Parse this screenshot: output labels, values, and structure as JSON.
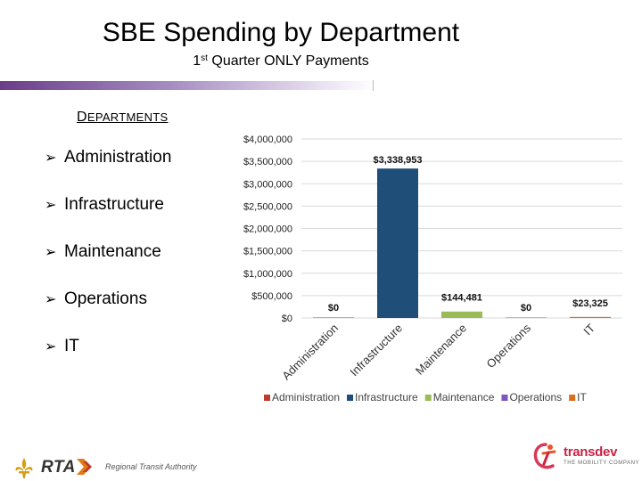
{
  "slide": {
    "title": "SBE Spending by Department",
    "subtitle_prefix": "1",
    "subtitle_sup": "st",
    "subtitle_rest": " Quarter ONLY Payments",
    "departments_heading_first": "D",
    "departments_heading_rest": "EPARTMENTS",
    "departments": [
      "Administration",
      "Infrastructure",
      "Maintenance",
      "Operations",
      "IT"
    ]
  },
  "footer": {
    "rta_name": "RTA",
    "rta_full": "Regional Transit Authority",
    "transdev_name": "transdev",
    "transdev_tagline": "THE MOBILITY COMPANY"
  },
  "colors": {
    "Administration": "#c0392b",
    "Infrastructure": "#1f4e79",
    "Maintenance": "#9bbb59",
    "Operations": "#7e57c2",
    "IT": "#d9701f"
  },
  "chart_data": {
    "type": "bar",
    "title": "",
    "xlabel": "",
    "ylabel": "",
    "categories": [
      "Administration",
      "Infrastructure",
      "Maintenance",
      "Operations",
      "IT"
    ],
    "values": [
      0,
      3338953,
      144481,
      0,
      23325
    ],
    "data_labels": [
      "$0",
      "$3,338,953",
      "$144,481",
      "$0",
      "$23,325"
    ],
    "ylim": [
      0,
      4000000
    ],
    "y_ticks": [
      0,
      500000,
      1000000,
      1500000,
      2000000,
      2500000,
      3000000,
      3500000,
      4000000
    ],
    "y_tick_labels": [
      "$0",
      "$500,000",
      "$1,000,000",
      "$1,500,000",
      "$2,000,000",
      "$2,500,000",
      "$3,000,000",
      "$3,500,000",
      "$4,000,000"
    ],
    "grid": true,
    "legend": [
      "Administration",
      "Infrastructure",
      "Maintenance",
      "Operations",
      "IT"
    ],
    "legend_position": "bottom"
  }
}
